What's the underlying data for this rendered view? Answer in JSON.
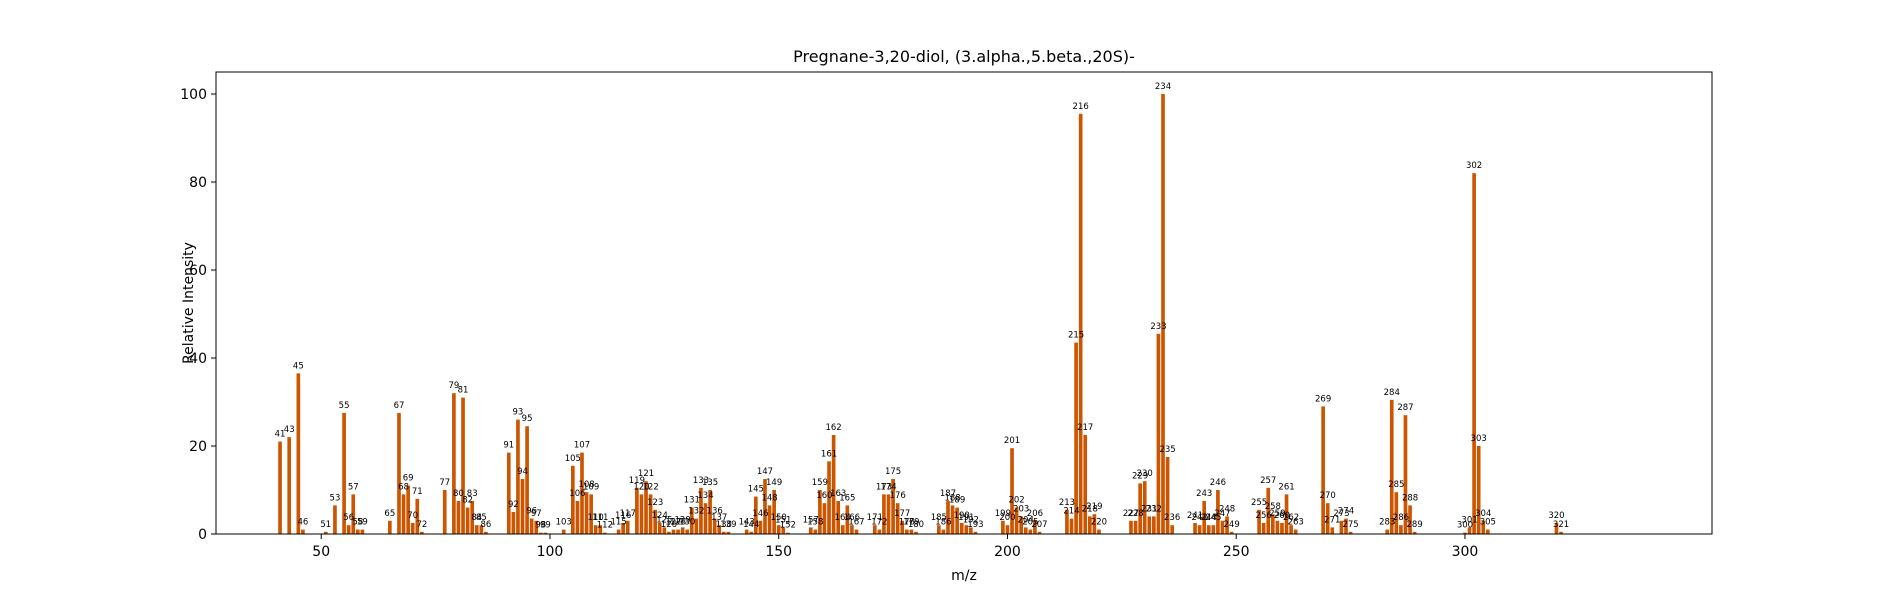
{
  "chart_data": {
    "type": "bar",
    "title": "Pregnane-3,20-diol, (3.alpha.,5.beta.,20S)-",
    "xlabel": "m/z",
    "ylabel": "Relative Intensity",
    "xlim": [
      27,
      354
    ],
    "ylim": [
      0,
      105
    ],
    "xticks": [
      50,
      100,
      150,
      200,
      250,
      300
    ],
    "yticks": [
      0,
      20,
      40,
      60,
      80,
      100
    ],
    "bar_color": "#cc5500",
    "grid": false,
    "peaks": [
      {
        "mz": 41,
        "y": 21
      },
      {
        "mz": 43,
        "y": 22
      },
      {
        "mz": 45,
        "y": 36.5
      },
      {
        "mz": 46,
        "y": 1
      },
      {
        "mz": 51,
        "y": 0.5
      },
      {
        "mz": 53,
        "y": 6.5
      },
      {
        "mz": 55,
        "y": 27.5
      },
      {
        "mz": 56,
        "y": 2
      },
      {
        "mz": 57,
        "y": 9
      },
      {
        "mz": 58,
        "y": 1
      },
      {
        "mz": 59,
        "y": 1
      },
      {
        "mz": 65,
        "y": 3
      },
      {
        "mz": 67,
        "y": 27.5
      },
      {
        "mz": 68,
        "y": 9
      },
      {
        "mz": 69,
        "y": 11
      },
      {
        "mz": 70,
        "y": 2.5
      },
      {
        "mz": 71,
        "y": 8
      },
      {
        "mz": 72,
        "y": 0.5
      },
      {
        "mz": 77,
        "y": 10
      },
      {
        "mz": 79,
        "y": 32
      },
      {
        "mz": 80,
        "y": 7.5
      },
      {
        "mz": 81,
        "y": 31
      },
      {
        "mz": 82,
        "y": 6
      },
      {
        "mz": 83,
        "y": 7.5
      },
      {
        "mz": 84,
        "y": 2
      },
      {
        "mz": 85,
        "y": 2
      },
      {
        "mz": 86,
        "y": 0.5
      },
      {
        "mz": 91,
        "y": 18.5
      },
      {
        "mz": 92,
        "y": 5
      },
      {
        "mz": 93,
        "y": 26
      },
      {
        "mz": 94,
        "y": 12.5
      },
      {
        "mz": 95,
        "y": 24.5
      },
      {
        "mz": 96,
        "y": 3.5
      },
      {
        "mz": 97,
        "y": 3
      },
      {
        "mz": 98,
        "y": 0.3
      },
      {
        "mz": 99,
        "y": 0.3
      },
      {
        "mz": 103,
        "y": 1
      },
      {
        "mz": 105,
        "y": 15.5
      },
      {
        "mz": 106,
        "y": 7.5
      },
      {
        "mz": 107,
        "y": 18.5
      },
      {
        "mz": 108,
        "y": 9.5
      },
      {
        "mz": 109,
        "y": 9
      },
      {
        "mz": 110,
        "y": 2
      },
      {
        "mz": 111,
        "y": 2
      },
      {
        "mz": 112,
        "y": 0.3
      },
      {
        "mz": 115,
        "y": 1
      },
      {
        "mz": 116,
        "y": 2.5
      },
      {
        "mz": 117,
        "y": 3
      },
      {
        "mz": 119,
        "y": 10.5
      },
      {
        "mz": 120,
        "y": 9
      },
      {
        "mz": 121,
        "y": 12
      },
      {
        "mz": 122,
        "y": 9
      },
      {
        "mz": 123,
        "y": 5.5
      },
      {
        "mz": 124,
        "y": 2.5
      },
      {
        "mz": 125,
        "y": 1.5
      },
      {
        "mz": 126,
        "y": 0.5
      },
      {
        "mz": 127,
        "y": 1
      },
      {
        "mz": 128,
        "y": 1
      },
      {
        "mz": 129,
        "y": 1.5
      },
      {
        "mz": 130,
        "y": 1
      },
      {
        "mz": 131,
        "y": 6
      },
      {
        "mz": 132,
        "y": 3.5
      },
      {
        "mz": 133,
        "y": 10.5
      },
      {
        "mz": 134,
        "y": 7
      },
      {
        "mz": 135,
        "y": 10
      },
      {
        "mz": 136,
        "y": 3.5
      },
      {
        "mz": 137,
        "y": 2
      },
      {
        "mz": 138,
        "y": 0.5
      },
      {
        "mz": 139,
        "y": 0.5
      },
      {
        "mz": 143,
        "y": 1
      },
      {
        "mz": 144,
        "y": 0.5
      },
      {
        "mz": 145,
        "y": 8.5
      },
      {
        "mz": 146,
        "y": 3
      },
      {
        "mz": 147,
        "y": 12.5
      },
      {
        "mz": 148,
        "y": 6.5
      },
      {
        "mz": 149,
        "y": 10
      },
      {
        "mz": 150,
        "y": 2
      },
      {
        "mz": 151,
        "y": 1.5
      },
      {
        "mz": 152,
        "y": 0.3
      },
      {
        "mz": 157,
        "y": 1.5
      },
      {
        "mz": 158,
        "y": 1
      },
      {
        "mz": 159,
        "y": 10
      },
      {
        "mz": 160,
        "y": 7
      },
      {
        "mz": 161,
        "y": 16.5
      },
      {
        "mz": 162,
        "y": 22.5
      },
      {
        "mz": 163,
        "y": 7.5
      },
      {
        "mz": 164,
        "y": 2
      },
      {
        "mz": 165,
        "y": 6.5
      },
      {
        "mz": 166,
        "y": 2
      },
      {
        "mz": 167,
        "y": 1
      },
      {
        "mz": 171,
        "y": 2
      },
      {
        "mz": 172,
        "y": 1
      },
      {
        "mz": 173,
        "y": 9
      },
      {
        "mz": 174,
        "y": 9
      },
      {
        "mz": 175,
        "y": 12.5
      },
      {
        "mz": 176,
        "y": 7
      },
      {
        "mz": 177,
        "y": 3
      },
      {
        "mz": 178,
        "y": 1
      },
      {
        "mz": 179,
        "y": 1
      },
      {
        "mz": 180,
        "y": 0.5
      },
      {
        "mz": 185,
        "y": 2
      },
      {
        "mz": 186,
        "y": 1
      },
      {
        "mz": 187,
        "y": 7.5
      },
      {
        "mz": 188,
        "y": 6.5
      },
      {
        "mz": 189,
        "y": 6
      },
      {
        "mz": 190,
        "y": 2.5
      },
      {
        "mz": 191,
        "y": 2
      },
      {
        "mz": 192,
        "y": 1.5
      },
      {
        "mz": 193,
        "y": 0.5
      },
      {
        "mz": 199,
        "y": 3
      },
      {
        "mz": 200,
        "y": 2
      },
      {
        "mz": 201,
        "y": 19.5
      },
      {
        "mz": 202,
        "y": 6
      },
      {
        "mz": 203,
        "y": 4
      },
      {
        "mz": 204,
        "y": 1.5
      },
      {
        "mz": 205,
        "y": 1
      },
      {
        "mz": 206,
        "y": 3
      },
      {
        "mz": 207,
        "y": 0.5
      },
      {
        "mz": 213,
        "y": 5.5
      },
      {
        "mz": 214,
        "y": 3.5
      },
      {
        "mz": 215,
        "y": 43.5
      },
      {
        "mz": 216,
        "y": 95.5
      },
      {
        "mz": 217,
        "y": 22.5
      },
      {
        "mz": 218,
        "y": 4
      },
      {
        "mz": 219,
        "y": 4.5
      },
      {
        "mz": 220,
        "y": 1
      },
      {
        "mz": 227,
        "y": 3
      },
      {
        "mz": 228,
        "y": 3
      },
      {
        "mz": 229,
        "y": 11.5
      },
      {
        "mz": 230,
        "y": 12
      },
      {
        "mz": 231,
        "y": 4
      },
      {
        "mz": 232,
        "y": 4
      },
      {
        "mz": 233,
        "y": 45.5
      },
      {
        "mz": 234,
        "y": 100
      },
      {
        "mz": 235,
        "y": 17.5
      },
      {
        "mz": 236,
        "y": 2
      },
      {
        "mz": 241,
        "y": 2.5
      },
      {
        "mz": 242,
        "y": 2
      },
      {
        "mz": 243,
        "y": 7.5
      },
      {
        "mz": 244,
        "y": 2
      },
      {
        "mz": 245,
        "y": 2
      },
      {
        "mz": 246,
        "y": 10
      },
      {
        "mz": 247,
        "y": 3
      },
      {
        "mz": 248,
        "y": 4
      },
      {
        "mz": 249,
        "y": 0.5
      },
      {
        "mz": 255,
        "y": 5.5
      },
      {
        "mz": 256,
        "y": 2.5
      },
      {
        "mz": 257,
        "y": 10.5
      },
      {
        "mz": 258,
        "y": 4.5
      },
      {
        "mz": 259,
        "y": 3
      },
      {
        "mz": 260,
        "y": 2.5
      },
      {
        "mz": 261,
        "y": 9
      },
      {
        "mz": 262,
        "y": 2
      },
      {
        "mz": 263,
        "y": 1
      },
      {
        "mz": 269,
        "y": 29
      },
      {
        "mz": 270,
        "y": 7
      },
      {
        "mz": 271,
        "y": 1.5
      },
      {
        "mz": 273,
        "y": 3
      },
      {
        "mz": 274,
        "y": 3.5
      },
      {
        "mz": 275,
        "y": 0.5
      },
      {
        "mz": 283,
        "y": 1
      },
      {
        "mz": 284,
        "y": 30.5
      },
      {
        "mz": 285,
        "y": 9.5
      },
      {
        "mz": 286,
        "y": 2
      },
      {
        "mz": 287,
        "y": 27
      },
      {
        "mz": 288,
        "y": 6.5
      },
      {
        "mz": 289,
        "y": 0.5
      },
      {
        "mz": 300,
        "y": 0.3
      },
      {
        "mz": 301,
        "y": 1.5
      },
      {
        "mz": 302,
        "y": 82
      },
      {
        "mz": 303,
        "y": 20
      },
      {
        "mz": 304,
        "y": 3
      },
      {
        "mz": 305,
        "y": 1
      },
      {
        "mz": 320,
        "y": 2.5
      },
      {
        "mz": 321,
        "y": 0.5
      }
    ]
  }
}
